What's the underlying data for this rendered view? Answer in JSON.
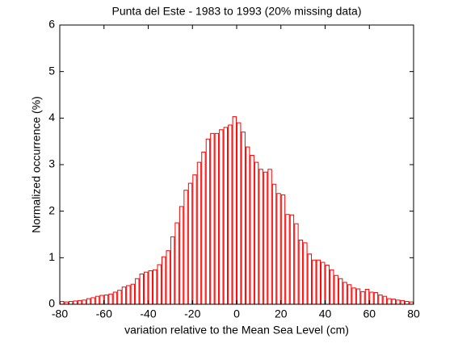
{
  "chart_data": {
    "type": "histogram",
    "title": "Punta del Este - 1983 to 1993 (20% missing data)",
    "x_label": "variation relative to the Mean Sea Level (cm)",
    "y_label": "Normalized occurrence (%)",
    "bins": [
      -80,
      -78,
      -76,
      -74,
      -72,
      -70,
      -68,
      -66,
      -64,
      -62,
      -60,
      -58,
      -56,
      -54,
      -52,
      -50,
      -48,
      -46,
      -44,
      -42,
      -40,
      -38,
      -36,
      -34,
      -32,
      -30,
      -28,
      -26,
      -24,
      -22,
      -20,
      -18,
      -16,
      -14,
      -12,
      -10,
      -8,
      -6,
      -4,
      -2,
      0,
      2,
      4,
      6,
      8,
      10,
      12,
      14,
      16,
      18,
      20,
      22,
      24,
      26,
      28,
      30,
      32,
      34,
      36,
      38,
      40,
      42,
      44,
      46,
      48,
      50,
      52,
      54,
      56,
      58,
      60,
      62,
      64,
      66,
      68,
      70,
      72,
      74,
      76,
      78,
      80
    ],
    "values": [
      0.06,
      0.05,
      0.06,
      0.07,
      0.08,
      0.09,
      0.12,
      0.14,
      0.17,
      0.19,
      0.2,
      0.22,
      0.26,
      0.3,
      0.37,
      0.4,
      0.43,
      0.55,
      0.65,
      0.69,
      0.72,
      0.74,
      0.85,
      1.02,
      1.15,
      1.45,
      1.75,
      2.1,
      2.45,
      2.6,
      2.78,
      3.05,
      3.27,
      3.55,
      3.67,
      3.67,
      3.75,
      3.8,
      3.85,
      4.03,
      3.9,
      3.7,
      3.38,
      3.2,
      3.05,
      2.9,
      2.84,
      2.9,
      2.58,
      2.38,
      2.35,
      1.93,
      1.92,
      1.73,
      1.38,
      1.32,
      1.08,
      0.95,
      0.95,
      0.9,
      0.84,
      0.74,
      0.62,
      0.55,
      0.47,
      0.42,
      0.35,
      0.33,
      0.27,
      0.32,
      0.26,
      0.25,
      0.2,
      0.17,
      0.12,
      0.11,
      0.09,
      0.08,
      0.06,
      0.05
    ],
    "color": "#ff0000",
    "xlim": [
      -80,
      80
    ],
    "xticks": [
      -80,
      -60,
      -40,
      -20,
      0,
      20,
      40,
      60,
      80
    ],
    "ylim": [
      0,
      6
    ],
    "yticks": [
      0,
      1,
      2,
      3,
      4,
      5,
      6
    ]
  }
}
